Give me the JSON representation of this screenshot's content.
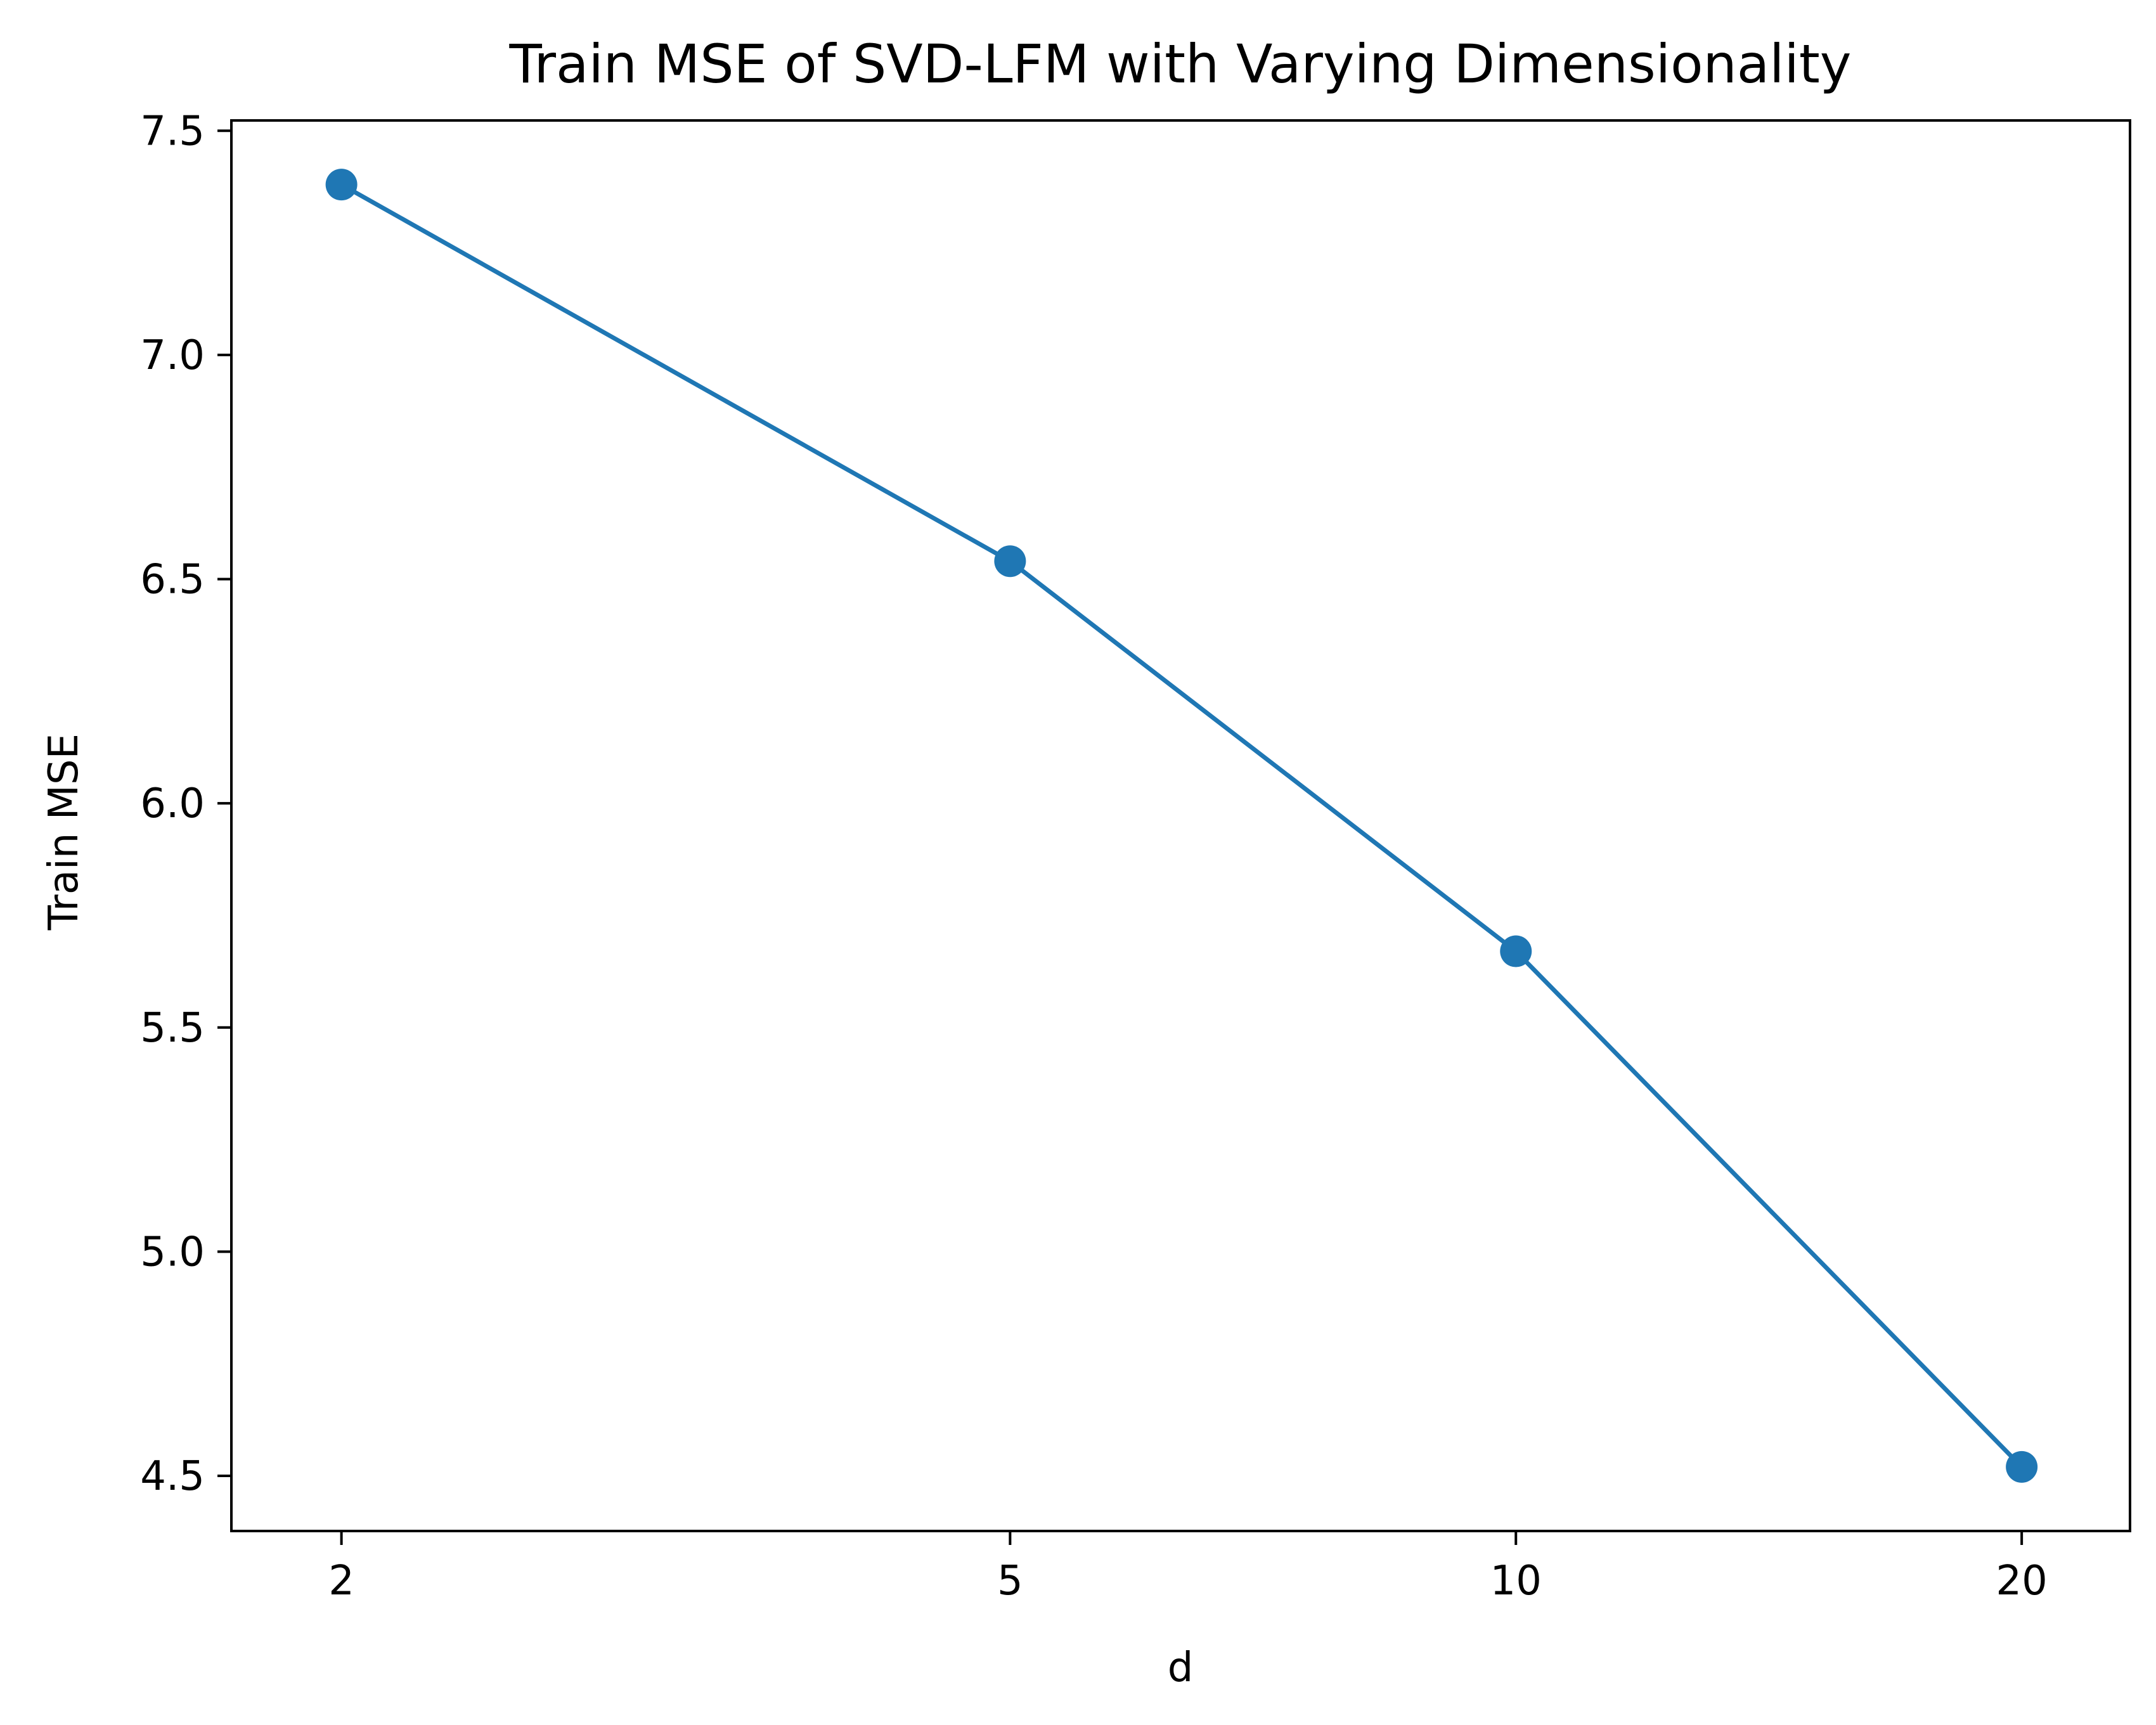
{
  "chart_data": {
    "type": "line",
    "title": "Train MSE of SVD-LFM with Varying Dimensionality",
    "xlabel": "d",
    "ylabel": "Train MSE",
    "x_scale": "log",
    "x": [
      2,
      5,
      10,
      20
    ],
    "x_tick_labels": [
      "2",
      "5",
      "10",
      "20"
    ],
    "series": [
      {
        "values": [
          7.38,
          6.54,
          5.67,
          4.52
        ],
        "color": "#1f77b4",
        "marker": "circle"
      }
    ],
    "xlim": [
      1.72,
      23.2
    ],
    "ylim": [
      4.377,
      7.523
    ],
    "y_ticks": [
      4.5,
      5.0,
      5.5,
      6.0,
      6.5,
      7.0,
      7.5
    ],
    "y_tick_labels": [
      "4.5",
      "5.0",
      "5.5",
      "6.0",
      "6.5",
      "7.0",
      "7.5"
    ],
    "grid": false,
    "legend": "none"
  }
}
